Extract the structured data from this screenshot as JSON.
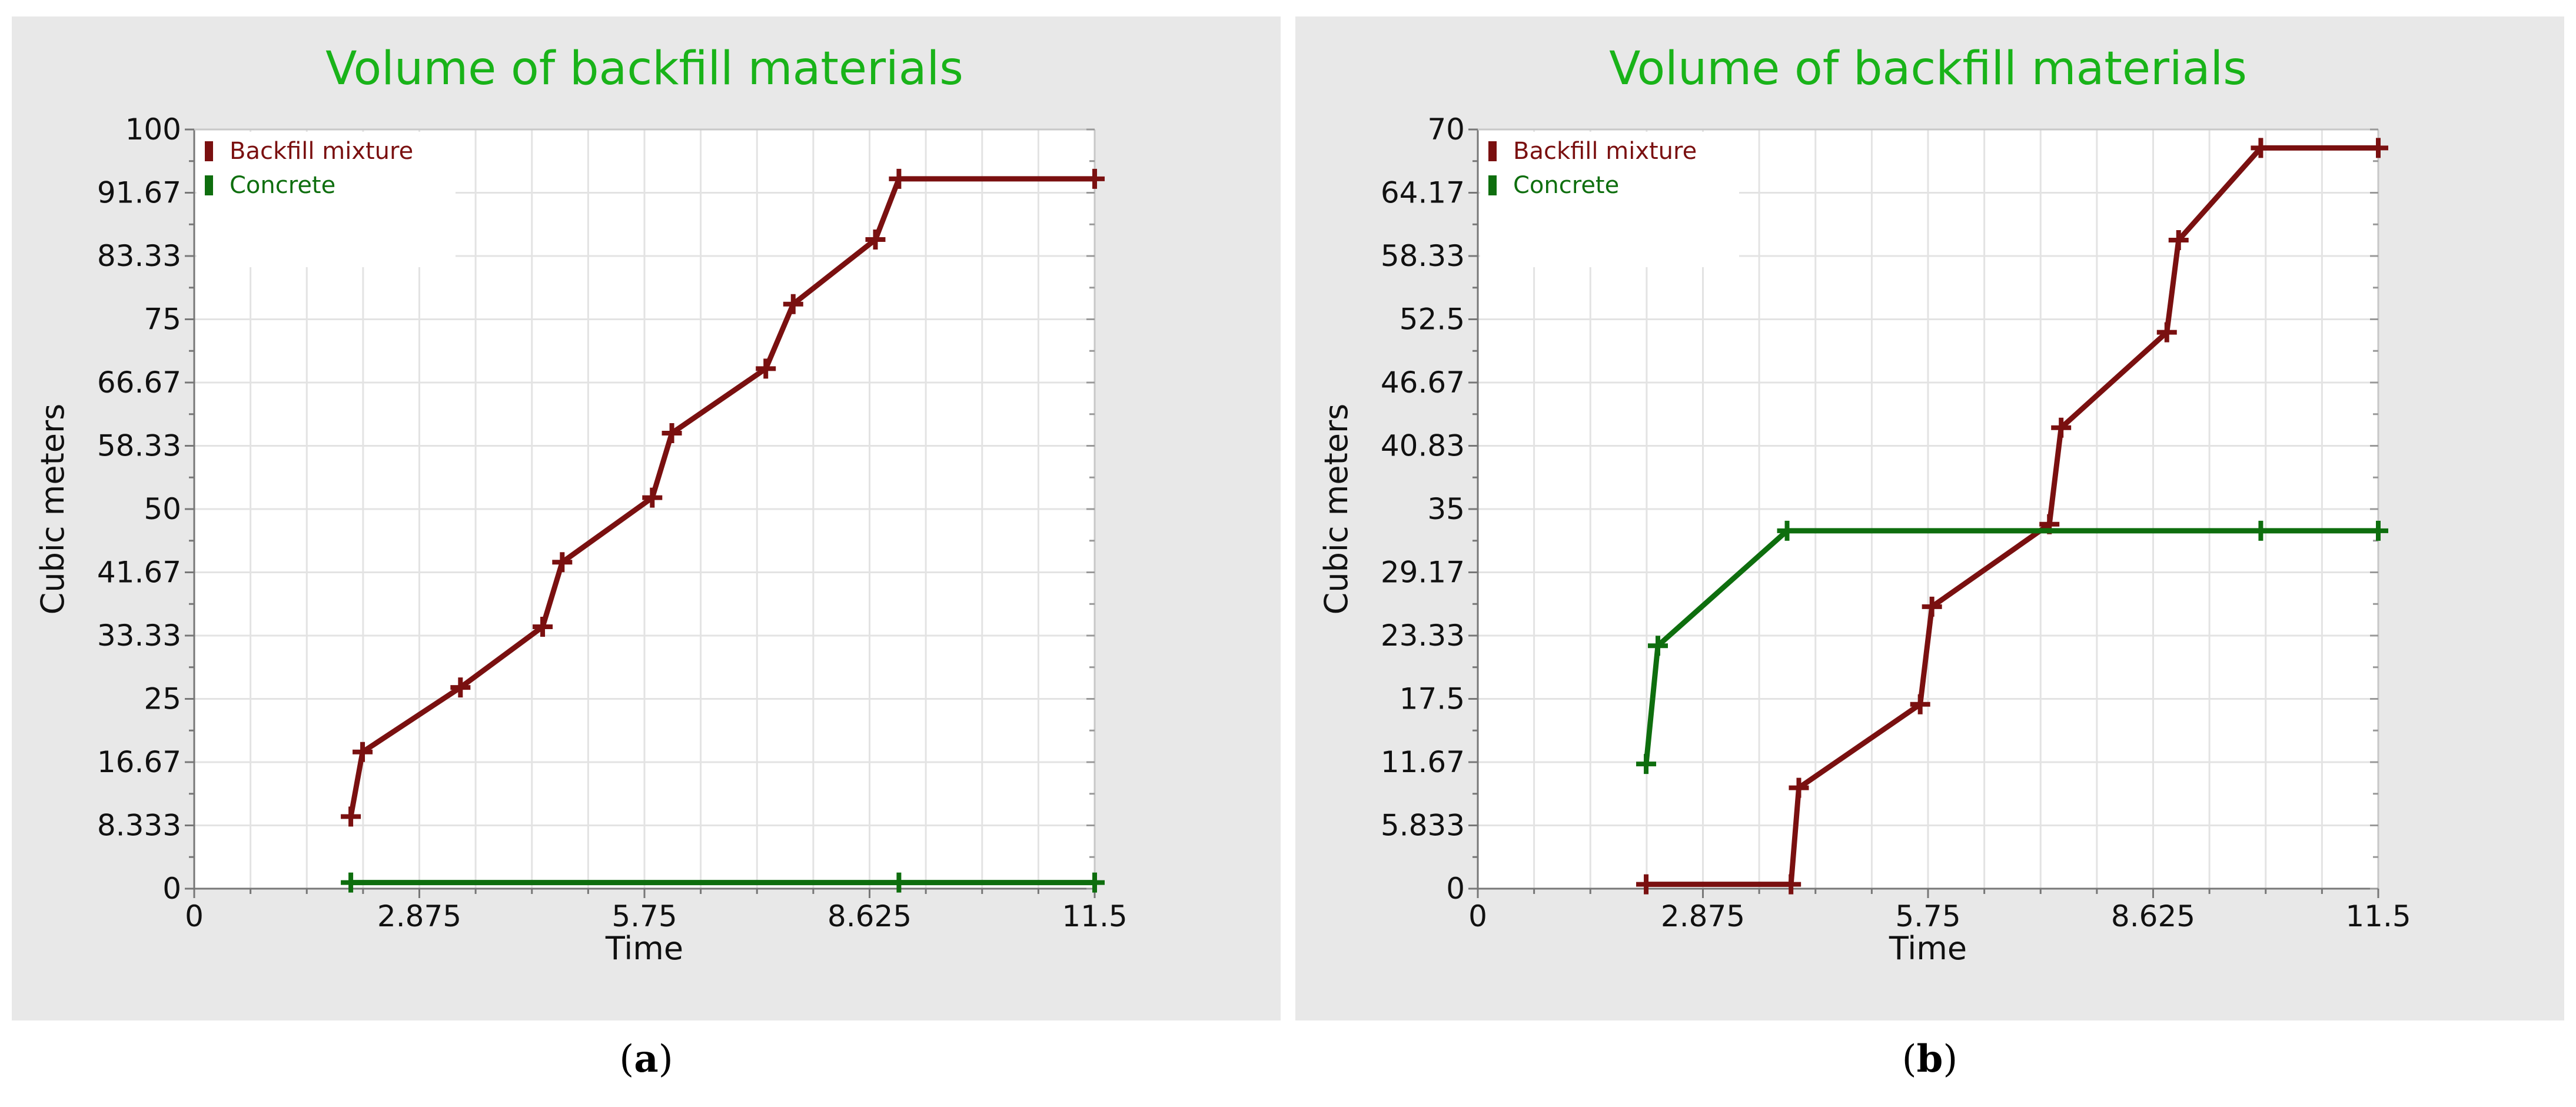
{
  "charts": [
    {
      "caption_letter": "a",
      "chart_data": {
        "type": "line",
        "title": "Volume of backfill materials",
        "xlabel": "Time",
        "ylabel": "Cubic meters",
        "xlim": [
          0,
          11.5
        ],
        "ylim": [
          0,
          100
        ],
        "x_ticks": [
          "0",
          "2.875",
          "5.75",
          "8.625",
          "11.5"
        ],
        "y_ticks": [
          "0",
          "8.333",
          "16.67",
          "25",
          "33.33",
          "41.67",
          "50",
          "58.33",
          "66.67",
          "75",
          "83.33",
          "91.67",
          "100"
        ],
        "grid": true,
        "legend_position": "top-left",
        "series": [
          {
            "name": "Backfill mixture",
            "color": "#7a1010",
            "points": [
              [
                2.0,
                9.5
              ],
              [
                2.15,
                18.0
              ],
              [
                3.4,
                26.5
              ],
              [
                4.45,
                34.5
              ],
              [
                4.7,
                43.0
              ],
              [
                5.85,
                51.5
              ],
              [
                6.1,
                60.0
              ],
              [
                7.3,
                68.5
              ],
              [
                7.65,
                77.0
              ],
              [
                8.7,
                85.5
              ],
              [
                9.0,
                93.5
              ],
              [
                11.5,
                93.5
              ]
            ]
          },
          {
            "name": "Concrete",
            "color": "#0e6e0e",
            "points": [
              [
                2.0,
                0.8
              ],
              [
                9.0,
                0.8
              ],
              [
                11.5,
                0.8
              ]
            ]
          }
        ]
      }
    },
    {
      "caption_letter": "b",
      "chart_data": {
        "type": "line",
        "title": "Volume of backfill materials",
        "xlabel": "Time",
        "ylabel": "Cubic meters",
        "xlim": [
          0,
          11.5
        ],
        "ylim": [
          0,
          70
        ],
        "x_ticks": [
          "0",
          "2.875",
          "5.75",
          "8.625",
          "11.5"
        ],
        "y_ticks": [
          "0",
          "5.833",
          "11.67",
          "17.5",
          "23.33",
          "29.17",
          "35",
          "40.83",
          "46.67",
          "52.5",
          "58.33",
          "64.17",
          "70"
        ],
        "grid": true,
        "legend_position": "top-left",
        "series": [
          {
            "name": "Backfill mixture",
            "color": "#7a1010",
            "points": [
              [
                2.15,
                0.4
              ],
              [
                4.0,
                0.4
              ],
              [
                4.1,
                9.3
              ],
              [
                5.65,
                17.0
              ],
              [
                5.8,
                26.0
              ],
              [
                7.3,
                33.6
              ],
              [
                7.45,
                42.5
              ],
              [
                8.8,
                51.3
              ],
              [
                8.95,
                59.8
              ],
              [
                10.0,
                68.3
              ],
              [
                11.5,
                68.3
              ]
            ]
          },
          {
            "name": "Concrete",
            "color": "#0e6e0e",
            "points": [
              [
                2.15,
                11.5
              ],
              [
                2.3,
                22.4
              ],
              [
                3.95,
                33.0
              ],
              [
                10.0,
                33.0
              ],
              [
                11.5,
                33.0
              ]
            ]
          }
        ]
      }
    }
  ]
}
